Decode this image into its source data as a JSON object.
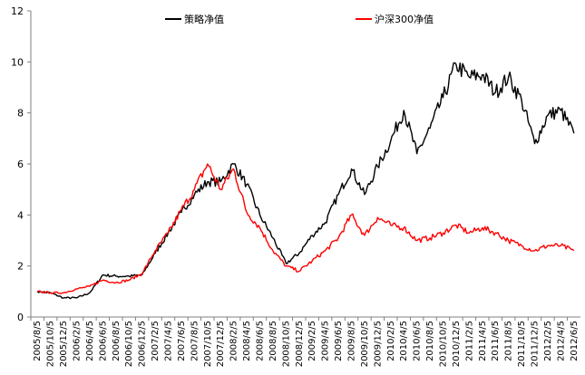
{
  "chart_data": {
    "type": "line",
    "title": "",
    "xlabel": "",
    "ylabel": "",
    "ylim": [
      0,
      12
    ],
    "yticks": [
      "0",
      "2",
      "4",
      "6",
      "8",
      "10",
      "12"
    ],
    "grid": false,
    "legend_position": "top",
    "x": [
      "2005/8/5",
      "2005/10/5",
      "2005/12/5",
      "2006/2/5",
      "2006/4/5",
      "2006/6/5",
      "2006/8/5",
      "2006/10/5",
      "2006/12/5",
      "2007/2/5",
      "2007/4/5",
      "2007/6/5",
      "2007/8/5",
      "2007/10/5",
      "2007/12/5",
      "2008/2/5",
      "2008/4/5",
      "2008/6/5",
      "2008/8/5",
      "2008/10/5",
      "2008/12/5",
      "2009/2/5",
      "2009/4/5",
      "2009/6/5",
      "2009/8/5",
      "2009/10/5",
      "2009/12/5",
      "2010/2/5",
      "2010/4/5",
      "2010/6/5",
      "2010/8/5",
      "2010/10/5",
      "2010/12/5",
      "2011/2/5",
      "2011/4/5",
      "2011/6/5",
      "2011/8/5",
      "2011/10/5",
      "2011/12/5",
      "2012/2/5",
      "2012/4/5",
      "2012/6/5"
    ],
    "series": [
      {
        "name": "策略净值",
        "color": "#000000",
        "values": [
          1.0,
          0.95,
          0.75,
          0.75,
          0.95,
          1.65,
          1.6,
          1.6,
          1.65,
          2.5,
          3.3,
          4.1,
          4.8,
          5.3,
          5.3,
          6.0,
          5.2,
          4.0,
          3.1,
          2.1,
          2.5,
          3.2,
          3.7,
          4.8,
          5.8,
          4.8,
          5.9,
          6.9,
          8.1,
          6.4,
          7.4,
          8.6,
          9.9,
          9.4,
          9.5,
          8.8,
          9.4,
          8.5,
          6.8,
          7.9,
          8.1,
          7.2
        ]
      },
      {
        "name": "沪深300净值",
        "color": "#ff0000",
        "values": [
          1.0,
          0.95,
          0.95,
          1.1,
          1.2,
          1.45,
          1.35,
          1.45,
          1.7,
          2.6,
          3.3,
          4.2,
          5.0,
          6.0,
          5.0,
          5.8,
          4.1,
          3.5,
          2.6,
          2.0,
          1.8,
          2.2,
          2.6,
          3.1,
          4.0,
          3.2,
          3.9,
          3.6,
          3.5,
          3.0,
          3.1,
          3.3,
          3.6,
          3.3,
          3.5,
          3.3,
          3.0,
          2.8,
          2.6,
          2.8,
          2.8,
          2.6
        ]
      }
    ]
  }
}
